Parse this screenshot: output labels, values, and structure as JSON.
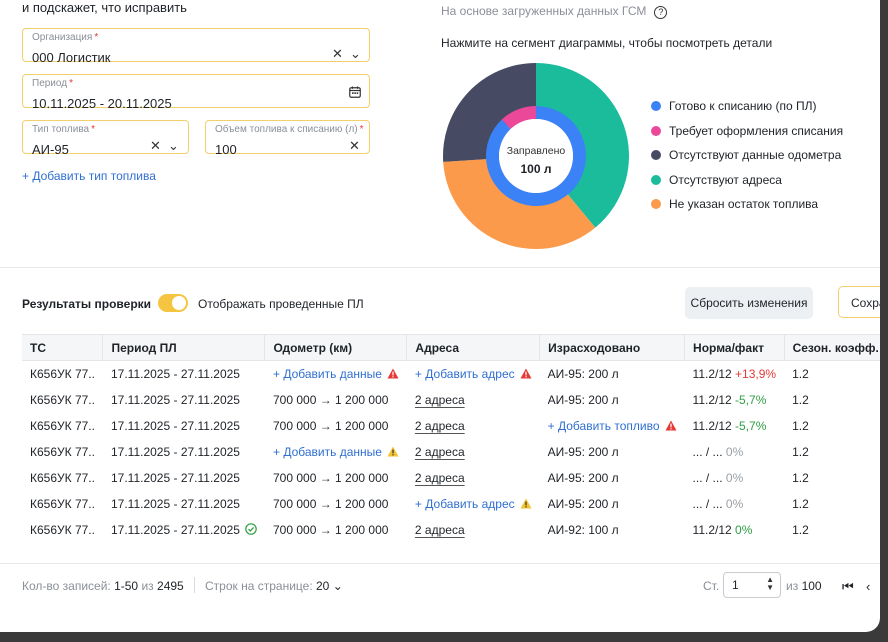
{
  "intro": "и подскажет, что исправить",
  "form": {
    "org": {
      "label": "Организация",
      "value": "000 Логистик"
    },
    "period": {
      "label": "Период",
      "value": "10.11.2025 - 20.11.2025"
    },
    "fuel_type": {
      "label": "Тип топлива",
      "value": "АИ-95"
    },
    "volume": {
      "label": "Объем топлива к списанию (л)",
      "value": "100"
    },
    "add_fuel": "+ Добавить тип топлива"
  },
  "chart": {
    "subtitle": "На основе загруженных данных ГСМ",
    "hint": "Нажмите на сегмент диаграммы, чтобы посмотреть детали",
    "center_label": "Заправлено",
    "center_value": "100 л",
    "legend": [
      {
        "name": "Готово к списанию (по ПЛ)",
        "color": "#3b82f6"
      },
      {
        "name": "Требует оформления списания",
        "color": "#ec4899"
      },
      {
        "name": "Отсутствуют данные одометра",
        "color": "#464b63"
      },
      {
        "name": "Отсутствуют адреса",
        "color": "#1abc9c"
      },
      {
        "name": "Не указан остаток топлива",
        "color": "#fb9a4b"
      }
    ]
  },
  "chart_data": {
    "type": "pie",
    "categories": [
      "Готово к списанию (по ПЛ)",
      "Требует оформления списания",
      "Отсутствуют данные одометра",
      "Отсутствуют адреса",
      "Не указан остаток топлива"
    ],
    "inner_ring": [
      {
        "name": "Готово к списанию (по ПЛ)",
        "value": 88
      },
      {
        "name": "Требует оформления списания",
        "value": 12
      }
    ],
    "outer_ring": [
      {
        "name": "Отсутствуют адреса",
        "value": 39
      },
      {
        "name": "Не указан остаток топлива",
        "value": 35
      },
      {
        "name": "Отсутствуют данные одометра",
        "value": 26
      }
    ]
  },
  "results": {
    "label": "Результаты проверки",
    "toggle_label": "Отображать проведенные ПЛ",
    "reset_button": "Сбросить изменения",
    "save_button": "Сохранить"
  },
  "table": {
    "headers": [
      "ТС",
      "Период ПЛ",
      "Одометр (км)",
      "Адреса",
      "Израсходовано",
      "Норма/факт",
      "Сезон. коэфф."
    ],
    "rows": [
      {
        "ts": "К656УК 77..",
        "period": "17.11.2025 - 27.11.2025",
        "odo": "+ Добавить данные",
        "odo_link": true,
        "odo_warn": "red",
        "addr": "+ Добавить адрес",
        "addr_link": true,
        "addr_warn": "red",
        "spent": "АИ-95: 200 л",
        "spent_link": false,
        "spent_warn": "",
        "norm": "11.2/12",
        "delta": "+13,9%",
        "delta_class": "red",
        "season": "1.2",
        "period_ok": false
      },
      {
        "ts": "К656УК 77..",
        "period": "17.11.2025 - 27.11.2025",
        "odo": "700 000 → 1 200 000",
        "odo_link": false,
        "odo_warn": "",
        "addr": "2 адреса",
        "addr_link": false,
        "addr_warn": "",
        "spent": "АИ-95: 200 л",
        "spent_link": false,
        "spent_warn": "",
        "norm": "11.2/12",
        "delta": "-5,7%",
        "delta_class": "green",
        "season": "1.2",
        "period_ok": false
      },
      {
        "ts": "К656УК 77..",
        "period": "17.11.2025 - 27.11.2025",
        "odo": "700 000 → 1 200 000",
        "odo_link": false,
        "odo_warn": "",
        "addr": "2 адреса",
        "addr_link": false,
        "addr_warn": "",
        "spent": "+ Добавить топливо",
        "spent_link": true,
        "spent_warn": "red",
        "norm": "11.2/12",
        "delta": "-5,7%",
        "delta_class": "green",
        "season": "1.2",
        "period_ok": false
      },
      {
        "ts": "К656УК 77..",
        "period": "17.11.2025 - 27.11.2025",
        "odo": "+ Добавить данные",
        "odo_link": true,
        "odo_warn": "yellow",
        "addr": "2 адреса",
        "addr_link": false,
        "addr_warn": "",
        "spent": "АИ-95: 200 л",
        "spent_link": false,
        "spent_warn": "",
        "norm": "... / ...",
        "delta": "0%",
        "delta_class": "grey",
        "season": "1.2",
        "period_ok": false
      },
      {
        "ts": "К656УК 77..",
        "period": "17.11.2025 - 27.11.2025",
        "odo": "700 000 → 1 200 000",
        "odo_link": false,
        "odo_warn": "",
        "addr": "2 адреса",
        "addr_link": false,
        "addr_warn": "",
        "spent": "АИ-95: 200 л",
        "spent_link": false,
        "spent_warn": "",
        "norm": "... / ...",
        "delta": "0%",
        "delta_class": "grey",
        "season": "1.2",
        "period_ok": false
      },
      {
        "ts": "К656УК 77..",
        "period": "17.11.2025 - 27.11.2025",
        "odo": "700 000 → 1 200 000",
        "odo_link": false,
        "odo_warn": "",
        "addr": "+ Добавить адрес",
        "addr_link": true,
        "addr_warn": "yellow",
        "spent": "АИ-95: 200 л",
        "spent_link": false,
        "spent_warn": "",
        "norm": "... / ...",
        "delta": "0%",
        "delta_class": "grey",
        "season": "1.2",
        "period_ok": false
      },
      {
        "ts": "К656УК 77..",
        "period": "17.11.2025 - 27.11.2025",
        "odo": "700 000 → 1 200 000",
        "odo_link": false,
        "odo_warn": "",
        "addr": "2 адреса",
        "addr_link": false,
        "addr_warn": "",
        "spent": "АИ-92: 100 л",
        "spent_link": false,
        "spent_warn": "",
        "norm": "11.2/12",
        "delta": "0%",
        "delta_class": "green",
        "season": "1.2",
        "period_ok": true
      }
    ]
  },
  "footer": {
    "records_label": "Кол-во записей:",
    "records_value": "1-50",
    "records_of": "из",
    "records_total": "2495",
    "rows_label": "Строк на странице:",
    "rows_value": "20",
    "page_label": "Ст.",
    "page_value": "1",
    "page_of": "из",
    "page_total": "100"
  }
}
